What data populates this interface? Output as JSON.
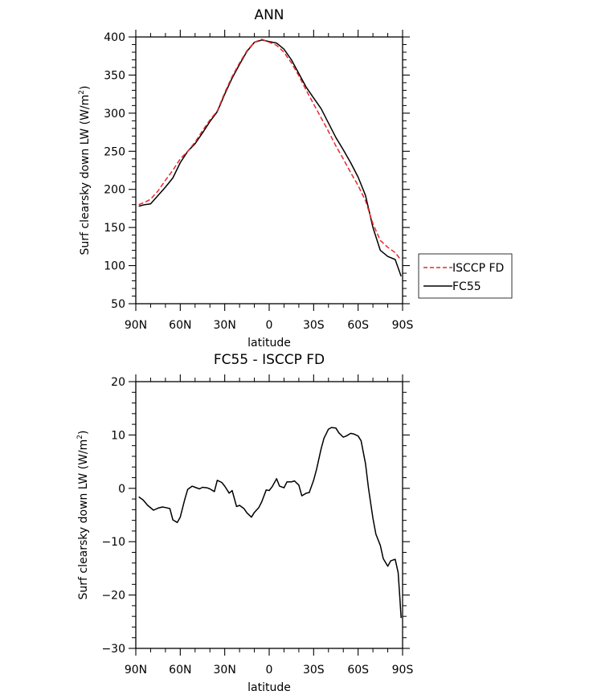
{
  "chart_data": [
    {
      "type": "line",
      "title": "ANN",
      "xlabel": "latitude",
      "ylabel": "Surf clearsky down LW (W/m",
      "ylabel_sup": "2",
      "ylabel_tail": ")",
      "xlim": [
        90,
        -90
      ],
      "ylim": [
        50,
        400
      ],
      "xticks": [
        90,
        60,
        30,
        0,
        -30,
        -60,
        -90
      ],
      "xtick_labels": [
        "90N",
        "60N",
        "30N",
        "0",
        "30S",
        "60S",
        "90S"
      ],
      "yticks": [
        50,
        100,
        150,
        200,
        250,
        300,
        350,
        400
      ],
      "ytick_labels": [
        "50",
        "100",
        "150",
        "200",
        "250",
        "300",
        "350",
        "400"
      ],
      "legend": {
        "placement": "right",
        "entries": [
          "ISCCP FD",
          "FC55"
        ]
      },
      "series": [
        {
          "name": "ISCCP FD",
          "color": "#e8282b",
          "dash": "dashed",
          "x": [
            88,
            84,
            80,
            75,
            70,
            65,
            60,
            55,
            50,
            45,
            40,
            35,
            30,
            25,
            20,
            15,
            10,
            5,
            0,
            -5,
            -10,
            -15,
            -20,
            -25,
            -30,
            -35,
            -40,
            -45,
            -50,
            -55,
            -60,
            -65,
            -70,
            -75,
            -80,
            -85,
            -89
          ],
          "y": [
            180,
            183,
            187,
            198,
            212,
            225,
            240,
            250,
            262,
            277,
            291,
            303,
            327,
            348,
            366,
            382,
            393,
            397,
            393,
            389,
            380,
            366,
            349,
            330,
            312,
            294,
            276,
            257,
            240,
            222,
            205,
            185,
            155,
            133,
            124,
            117,
            107
          ]
        },
        {
          "name": "FC55",
          "color": "#000000",
          "dash": "solid",
          "x": [
            88,
            84,
            80,
            75,
            70,
            65,
            60,
            55,
            50,
            45,
            40,
            35,
            30,
            25,
            20,
            15,
            10,
            5,
            0,
            -5,
            -10,
            -15,
            -20,
            -25,
            -30,
            -35,
            -40,
            -45,
            -50,
            -55,
            -60,
            -65,
            -70,
            -75,
            -80,
            -85,
            -89
          ],
          "y": [
            178,
            180,
            181,
            192,
            203,
            215,
            235,
            250,
            260,
            274,
            289,
            302,
            325,
            346,
            364,
            381,
            393,
            396,
            394,
            392,
            384,
            370,
            352,
            334,
            320,
            306,
            287,
            268,
            252,
            235,
            216,
            192,
            150,
            120,
            112,
            108,
            86
          ]
        }
      ]
    },
    {
      "type": "line",
      "title": "FC55 - ISCCP FD",
      "xlabel": "latitude",
      "ylabel": "Surf clearsky down LW (W/m",
      "ylabel_sup": "2",
      "ylabel_tail": ")",
      "xlim": [
        90,
        -90
      ],
      "ylim": [
        -30,
        20
      ],
      "xticks": [
        90,
        60,
        30,
        0,
        -30,
        -60,
        -90
      ],
      "xtick_labels": [
        "90N",
        "60N",
        "30N",
        "0",
        "30S",
        "60S",
        "90S"
      ],
      "yticks": [
        -30,
        -20,
        -10,
        0,
        10,
        20
      ],
      "ytick_labels": [
        "−30",
        "−20",
        "−10",
        "0",
        "10",
        "20"
      ],
      "series": [
        {
          "color": "#000000",
          "dash": "solid",
          "x": [
            88,
            85,
            82,
            78,
            75,
            72,
            70,
            67,
            65,
            62,
            60,
            57,
            55,
            52,
            50,
            47,
            45,
            42,
            40,
            37,
            35,
            32,
            30,
            27,
            25,
            22,
            20,
            17,
            15,
            12,
            10,
            7,
            5,
            2,
            0,
            -2,
            -5,
            -7,
            -10,
            -12,
            -15,
            -17,
            -20,
            -22,
            -25,
            -27,
            -30,
            -32,
            -35,
            -37,
            -40,
            -42,
            -45,
            -47,
            -50,
            -52,
            -55,
            -57,
            -60,
            -62,
            -65,
            -67,
            -70,
            -72,
            -75,
            -77,
            -80,
            -82,
            -85,
            -87,
            -88,
            -89
          ],
          "y": [
            -1.6,
            -2.2,
            -3.2,
            -4.1,
            -3.7,
            -3.5,
            -3.6,
            -3.8,
            -5.9,
            -6.4,
            -5.4,
            -2.1,
            -0.2,
            0.4,
            0.2,
            -0.1,
            0.2,
            0.1,
            -0.1,
            -0.6,
            1.5,
            1.1,
            0.4,
            -0.9,
            -0.4,
            -3.4,
            -3.2,
            -3.8,
            -4.6,
            -5.4,
            -4.5,
            -3.6,
            -2.5,
            -0.3,
            -0.4,
            0.3,
            1.8,
            0.4,
            0.1,
            1.2,
            1.2,
            1.4,
            0.6,
            -1.4,
            -0.9,
            -0.8,
            1.5,
            3.6,
            7.4,
            9.4,
            11.1,
            11.4,
            11.3,
            10.4,
            9.6,
            9.8,
            10.3,
            10.2,
            9.8,
            8.9,
            4.6,
            0,
            -5.6,
            -8.6,
            -10.7,
            -13.2,
            -14.6,
            -13.6,
            -13.3,
            -15.8,
            -19.8,
            -24.3
          ]
        }
      ]
    }
  ]
}
